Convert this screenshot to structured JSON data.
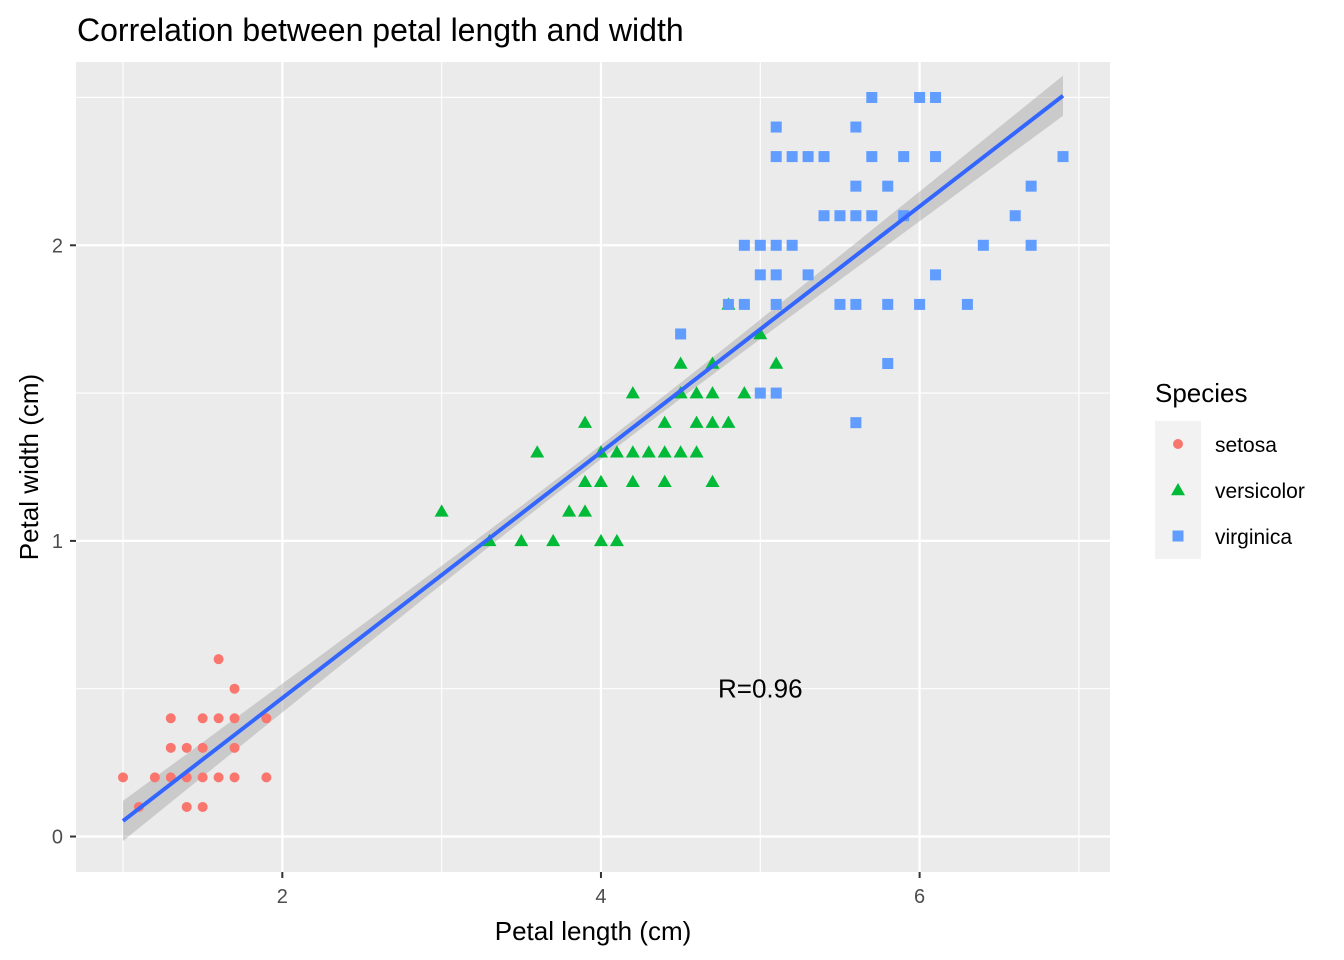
{
  "chart_data": {
    "type": "scatter",
    "title": "Correlation between petal length and width",
    "xlabel": "Petal length (cm)",
    "ylabel": "Petal width (cm)",
    "xlim": [
      0.705,
      7.195
    ],
    "ylim": [
      -0.12,
      2.62
    ],
    "x_ticks": [
      2,
      4,
      6
    ],
    "y_ticks": [
      0,
      1,
      2
    ],
    "x_tick_labels": [
      "2",
      "4",
      "6"
    ],
    "y_tick_labels": [
      "0",
      "1",
      "2"
    ],
    "x_minor_ticks": [
      1,
      3,
      5,
      7
    ],
    "y_minor_ticks": [
      0.5,
      1.5,
      2.5
    ],
    "grid": true,
    "legend": {
      "title": "Species",
      "position": "right"
    },
    "annotation": {
      "text": "R=0.96",
      "x": 5.0,
      "y": 0.5
    },
    "trendline": {
      "method": "lm",
      "slope": 0.4158,
      "intercept": -0.3631,
      "x_range": [
        1.0,
        6.9
      ],
      "se_halfwidth_ends": 0.068,
      "se_halfwidth_center": 0.024,
      "color": "#3366ff",
      "band_color": "#999999"
    },
    "series": [
      {
        "name": "setosa",
        "shape": "circle",
        "color": "#f8766d",
        "points": [
          [
            1.0,
            0.2
          ],
          [
            1.1,
            0.1
          ],
          [
            1.2,
            0.2
          ],
          [
            1.3,
            0.2
          ],
          [
            1.3,
            0.3
          ],
          [
            1.3,
            0.4
          ],
          [
            1.4,
            0.1
          ],
          [
            1.4,
            0.2
          ],
          [
            1.4,
            0.3
          ],
          [
            1.5,
            0.1
          ],
          [
            1.5,
            0.2
          ],
          [
            1.5,
            0.3
          ],
          [
            1.5,
            0.4
          ],
          [
            1.6,
            0.2
          ],
          [
            1.6,
            0.4
          ],
          [
            1.6,
            0.6
          ],
          [
            1.7,
            0.2
          ],
          [
            1.7,
            0.3
          ],
          [
            1.7,
            0.4
          ],
          [
            1.7,
            0.5
          ],
          [
            1.9,
            0.2
          ],
          [
            1.9,
            0.4
          ]
        ]
      },
      {
        "name": "versicolor",
        "shape": "triangle",
        "color": "#00ba38",
        "points": [
          [
            3.0,
            1.1
          ],
          [
            3.3,
            1.0
          ],
          [
            3.5,
            1.0
          ],
          [
            3.6,
            1.3
          ],
          [
            3.7,
            1.0
          ],
          [
            3.8,
            1.1
          ],
          [
            3.9,
            1.1
          ],
          [
            3.9,
            1.2
          ],
          [
            3.9,
            1.4
          ],
          [
            4.0,
            1.0
          ],
          [
            4.0,
            1.2
          ],
          [
            4.0,
            1.3
          ],
          [
            4.1,
            1.0
          ],
          [
            4.1,
            1.3
          ],
          [
            4.2,
            1.2
          ],
          [
            4.2,
            1.3
          ],
          [
            4.2,
            1.5
          ],
          [
            4.3,
            1.3
          ],
          [
            4.4,
            1.2
          ],
          [
            4.4,
            1.3
          ],
          [
            4.4,
            1.4
          ],
          [
            4.5,
            1.3
          ],
          [
            4.5,
            1.5
          ],
          [
            4.5,
            1.6
          ],
          [
            4.6,
            1.3
          ],
          [
            4.6,
            1.4
          ],
          [
            4.6,
            1.5
          ],
          [
            4.7,
            1.2
          ],
          [
            4.7,
            1.4
          ],
          [
            4.7,
            1.5
          ],
          [
            4.7,
            1.6
          ],
          [
            4.8,
            1.4
          ],
          [
            4.8,
            1.8
          ],
          [
            4.9,
            1.5
          ],
          [
            5.0,
            1.7
          ],
          [
            5.1,
            1.6
          ]
        ]
      },
      {
        "name": "virginica",
        "shape": "square",
        "color": "#619cff",
        "points": [
          [
            4.5,
            1.7
          ],
          [
            4.8,
            1.8
          ],
          [
            4.9,
            1.8
          ],
          [
            4.9,
            2.0
          ],
          [
            5.0,
            1.5
          ],
          [
            5.0,
            1.9
          ],
          [
            5.0,
            2.0
          ],
          [
            5.1,
            1.5
          ],
          [
            5.1,
            1.8
          ],
          [
            5.1,
            1.9
          ],
          [
            5.1,
            2.0
          ],
          [
            5.1,
            2.3
          ],
          [
            5.1,
            2.4
          ],
          [
            5.2,
            2.0
          ],
          [
            5.2,
            2.3
          ],
          [
            5.3,
            1.9
          ],
          [
            5.3,
            2.3
          ],
          [
            5.4,
            2.1
          ],
          [
            5.4,
            2.3
          ],
          [
            5.5,
            1.8
          ],
          [
            5.5,
            2.1
          ],
          [
            5.6,
            1.4
          ],
          [
            5.6,
            1.8
          ],
          [
            5.6,
            2.1
          ],
          [
            5.6,
            2.2
          ],
          [
            5.6,
            2.4
          ],
          [
            5.7,
            2.1
          ],
          [
            5.7,
            2.3
          ],
          [
            5.7,
            2.5
          ],
          [
            5.8,
            1.6
          ],
          [
            5.8,
            1.8
          ],
          [
            5.8,
            2.2
          ],
          [
            5.9,
            2.1
          ],
          [
            5.9,
            2.3
          ],
          [
            6.0,
            1.8
          ],
          [
            6.0,
            2.5
          ],
          [
            6.1,
            1.9
          ],
          [
            6.1,
            2.3
          ],
          [
            6.1,
            2.5
          ],
          [
            6.3,
            1.8
          ],
          [
            6.4,
            2.0
          ],
          [
            6.6,
            2.1
          ],
          [
            6.7,
            2.0
          ],
          [
            6.7,
            2.2
          ],
          [
            6.9,
            2.3
          ]
        ]
      }
    ]
  }
}
